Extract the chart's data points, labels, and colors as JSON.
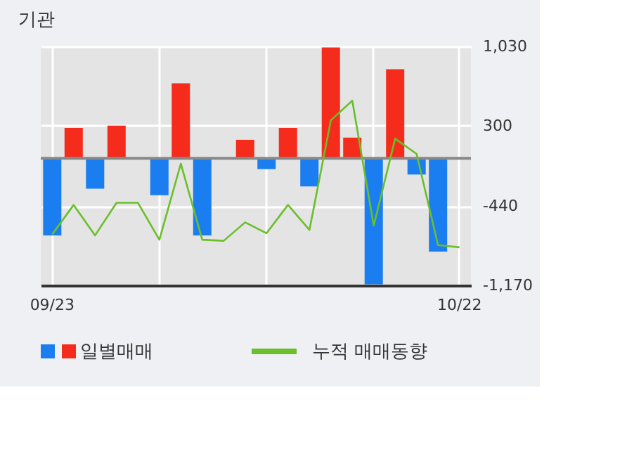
{
  "chart_data": {
    "type": "bar",
    "title": "기관",
    "categories": [
      "09/23",
      null,
      null,
      null,
      null,
      null,
      null,
      null,
      null,
      null,
      null,
      null,
      null,
      null,
      null,
      null,
      null,
      null,
      null,
      "10/22"
    ],
    "series": [
      {
        "name": "일별매매",
        "colors": [
          "#1a7ef0",
          "#f52c1c",
          "#1a7ef0",
          "#f52c1c",
          "#f52c1c",
          "#1a7ef0",
          "#f52c1c",
          "#1a7ef0",
          "#f52c1c",
          "#f52c1c",
          "#1a7ef0",
          "#f52c1c",
          "#1a7ef0",
          "#f52c1c",
          "#f52c1c",
          "#1a7ef0",
          "#f52c1c",
          "#1a7ef0",
          "#1a7ef0",
          "#f52c1c"
        ],
        "values": [
          -710,
          280,
          -280,
          300,
          0,
          -340,
          690,
          -710,
          0,
          170,
          -100,
          280,
          -260,
          1020,
          190,
          -1160,
          820,
          -150,
          -860,
          0
        ]
      },
      {
        "name": "누적 매매동향",
        "type": "line",
        "color": "#6abf2a",
        "values": [
          -700,
          -430,
          -710,
          -410,
          -410,
          -750,
          -50,
          -750,
          -760,
          -590,
          -690,
          -430,
          -660,
          350,
          530,
          -620,
          180,
          40,
          -800,
          -820
        ]
      }
    ],
    "ylim": [
      -1170,
      1030
    ],
    "yticks": [
      {
        "value": -1170,
        "label": "-1,170"
      },
      -440,
      300,
      {
        "value": 1030,
        "label": "1,030"
      }
    ],
    "ref_lines": [
      {
        "axis": "y",
        "value": 0,
        "color": "#888888"
      }
    ],
    "grid": true,
    "legend": "bottom"
  }
}
